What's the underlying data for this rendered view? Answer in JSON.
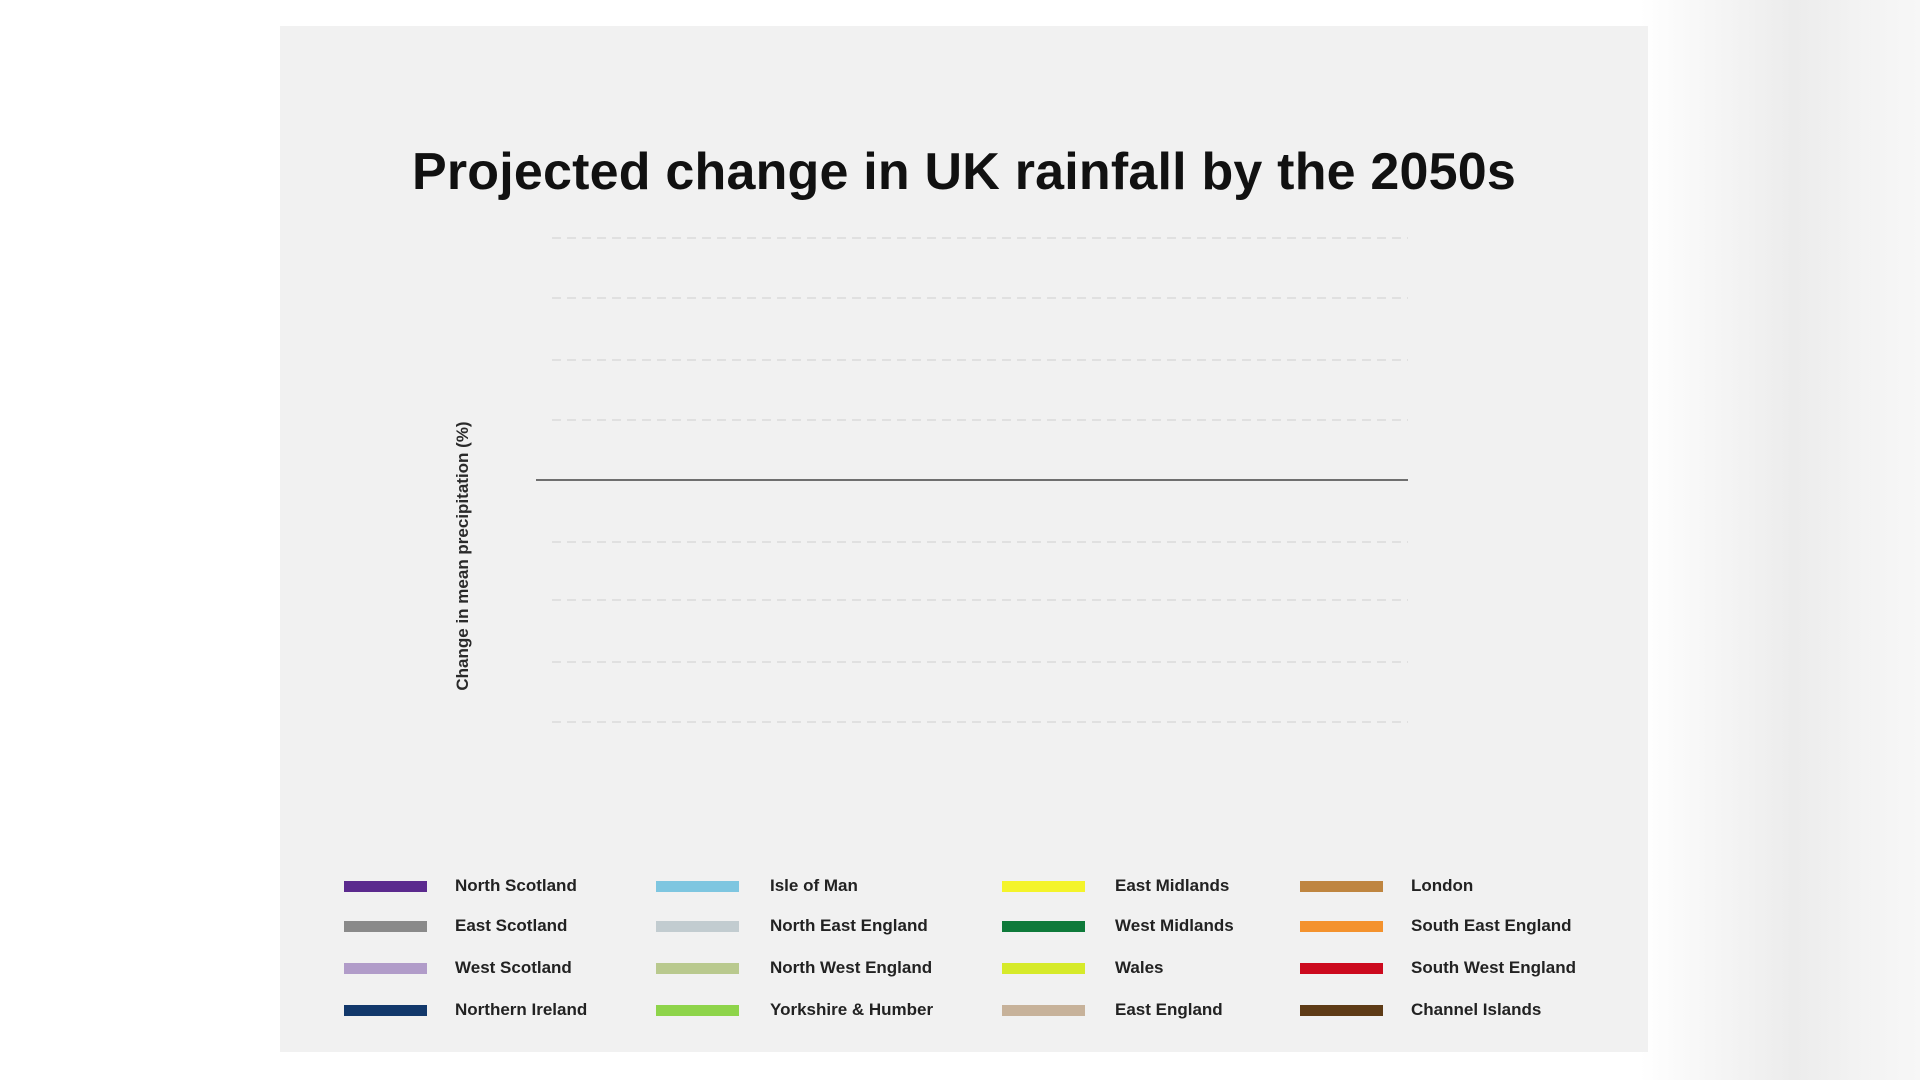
{
  "chart_data": {
    "type": "line",
    "title": "Projected change in UK rainfall by the 2050s",
    "ylabel": "Change in mean precipitation (%)",
    "xlabel": "",
    "grid": true,
    "legend_placement": "bottom",
    "series": [
      {
        "name": "North Scotland",
        "color": "#5b2a8e",
        "values": []
      },
      {
        "name": "East Scotland",
        "color": "#8a8a8a",
        "values": []
      },
      {
        "name": "West Scotland",
        "color": "#b19cc9",
        "values": []
      },
      {
        "name": "Northern Ireland",
        "color": "#12386b",
        "values": []
      },
      {
        "name": "Isle of Man",
        "color": "#7ec6e0",
        "values": []
      },
      {
        "name": "North East England",
        "color": "#c2ccd0",
        "values": []
      },
      {
        "name": "North West England",
        "color": "#b9c98e",
        "values": []
      },
      {
        "name": "Yorkshire & Humber",
        "color": "#8ed44a",
        "values": []
      },
      {
        "name": "East Midlands",
        "color": "#f4f42a",
        "values": []
      },
      {
        "name": "West Midlands",
        "color": "#0e7a3a",
        "values": []
      },
      {
        "name": "Wales",
        "color": "#d6ea2a",
        "values": []
      },
      {
        "name": "East England",
        "color": "#c7b29a",
        "values": []
      },
      {
        "name": "London",
        "color": "#bf8540",
        "values": []
      },
      {
        "name": "South East England",
        "color": "#f4922d",
        "values": []
      },
      {
        "name": "South West England",
        "color": "#cc0a1e",
        "values": []
      },
      {
        "name": "Channel Islands",
        "color": "#5e3b16",
        "values": []
      }
    ]
  }
}
